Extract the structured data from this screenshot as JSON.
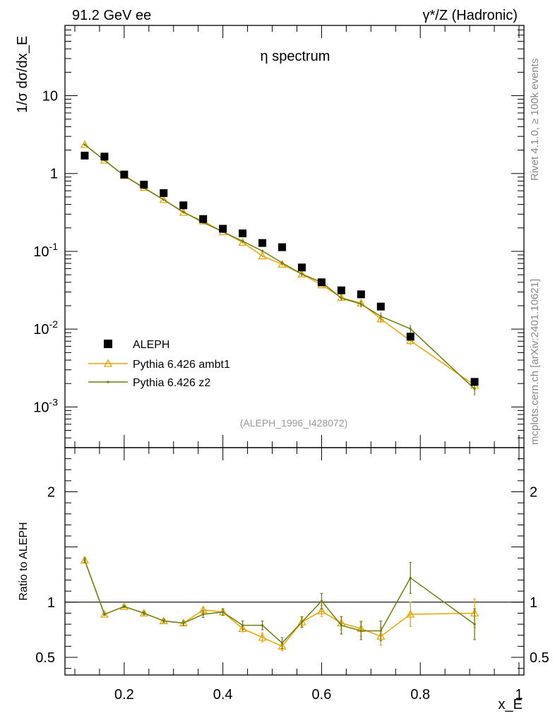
{
  "chart_data": [
    {
      "type": "scatter",
      "panel": "main",
      "title": "η spectrum",
      "header_left": "91.2 GeV ee",
      "header_right": "γ*/Z (Hadronic)",
      "ylabel": "1/σ  dσ/dx_E",
      "yscale": "log",
      "ylim": [
        0.0003,
        80
      ],
      "xlim": [
        0.08,
        1.01
      ],
      "ytick_labels": [
        "10^-3",
        "10^-2",
        "10^-1",
        "1",
        "10"
      ],
      "ytick_values": [
        0.001,
        0.01,
        0.1,
        1,
        10
      ],
      "reference": "(ALEPH_1996_I428072)",
      "legend": {
        "position": "bottom-left",
        "entries": [
          "ALEPH",
          "Pythia 6.426 ambt1",
          "Pythia 6.426 z2"
        ]
      },
      "x": [
        0.12,
        0.16,
        0.2,
        0.24,
        0.28,
        0.32,
        0.36,
        0.4,
        0.44,
        0.48,
        0.52,
        0.56,
        0.6,
        0.64,
        0.68,
        0.72,
        0.78,
        0.91
      ],
      "series": [
        {
          "name": "ALEPH",
          "marker": "square",
          "color": "#000000",
          "values": [
            1.7,
            1.65,
            0.97,
            0.72,
            0.56,
            0.39,
            0.26,
            0.195,
            0.17,
            0.128,
            0.113,
            0.062,
            0.04,
            0.0315,
            0.028,
            0.0195,
            0.008,
            0.0021
          ]
        },
        {
          "name": "Pythia 6.426 ambt1",
          "marker": "triangle",
          "color": "#e8a500",
          "values": [
            2.35,
            1.48,
            0.94,
            0.66,
            0.46,
            0.315,
            0.245,
            0.178,
            0.13,
            0.087,
            0.068,
            0.051,
            0.037,
            0.0255,
            0.0215,
            0.0135,
            0.0071,
            0.0019
          ],
          "errors": [
            0.06,
            0.03,
            0.02,
            0.015,
            0.01,
            0.008,
            0.006,
            0.005,
            0.004,
            0.003,
            0.003,
            0.0025,
            0.002,
            0.002,
            0.002,
            0.0015,
            0.0009,
            0.0003
          ]
        },
        {
          "name": "Pythia 6.426 z2",
          "marker": "dot",
          "color": "#6b7f10",
          "values": [
            2.35,
            1.48,
            0.94,
            0.65,
            0.46,
            0.32,
            0.235,
            0.178,
            0.135,
            0.101,
            0.071,
            0.051,
            0.04,
            0.025,
            0.021,
            0.0146,
            0.0101,
            0.0017
          ],
          "errors": [
            0.06,
            0.03,
            0.02,
            0.015,
            0.01,
            0.008,
            0.006,
            0.005,
            0.005,
            0.004,
            0.004,
            0.003,
            0.003,
            0.002,
            0.002,
            0.0018,
            0.0012,
            0.0003
          ]
        }
      ]
    },
    {
      "type": "line",
      "panel": "ratio",
      "xlabel": "x_E",
      "ylabel": "Ratio to ALEPH",
      "ylim": [
        0.34,
        2.4
      ],
      "xlim": [
        0.08,
        1.01
      ],
      "ytick_labels": [
        "0.5",
        "1",
        "2"
      ],
      "ytick_values": [
        0.5,
        1,
        2
      ],
      "xtick_labels": [
        "0.2",
        "0.4",
        "0.6",
        "0.8",
        "1"
      ],
      "xtick_values": [
        0.2,
        0.4,
        0.6,
        0.8,
        1.0
      ],
      "reference_line": 1,
      "x": [
        0.12,
        0.16,
        0.2,
        0.24,
        0.28,
        0.32,
        0.36,
        0.4,
        0.44,
        0.48,
        0.52,
        0.56,
        0.6,
        0.64,
        0.68,
        0.72,
        0.78,
        0.91
      ],
      "series": [
        {
          "name": "Pythia 6.426 ambt1",
          "color": "#e8a500",
          "values": [
            1.38,
            0.89,
            0.96,
            0.9,
            0.83,
            0.81,
            0.93,
            0.91,
            0.76,
            0.68,
            0.6,
            0.82,
            0.92,
            0.81,
            0.76,
            0.69,
            0.89,
            0.9
          ],
          "errors": [
            0.02,
            0.01,
            0.01,
            0.015,
            0.015,
            0.02,
            0.02,
            0.03,
            0.03,
            0.04,
            0.04,
            0.04,
            0.05,
            0.06,
            0.07,
            0.08,
            0.11,
            0.13
          ]
        },
        {
          "name": "Pythia 6.426 z2",
          "color": "#6b7f10",
          "values": [
            1.38,
            0.89,
            0.96,
            0.9,
            0.83,
            0.81,
            0.89,
            0.91,
            0.79,
            0.79,
            0.63,
            0.82,
            1.01,
            0.79,
            0.74,
            0.74,
            1.22,
            0.8
          ],
          "errors": [
            0.02,
            0.01,
            0.01,
            0.015,
            0.015,
            0.02,
            0.03,
            0.03,
            0.04,
            0.04,
            0.05,
            0.05,
            0.07,
            0.08,
            0.08,
            0.09,
            0.14,
            0.14
          ]
        }
      ]
    }
  ],
  "side_labels": {
    "rivet": "Rivet 4.1.0, ≥ 100k events",
    "mcplots": "mcplots.cern.ch [arXiv:2401.10621]"
  }
}
